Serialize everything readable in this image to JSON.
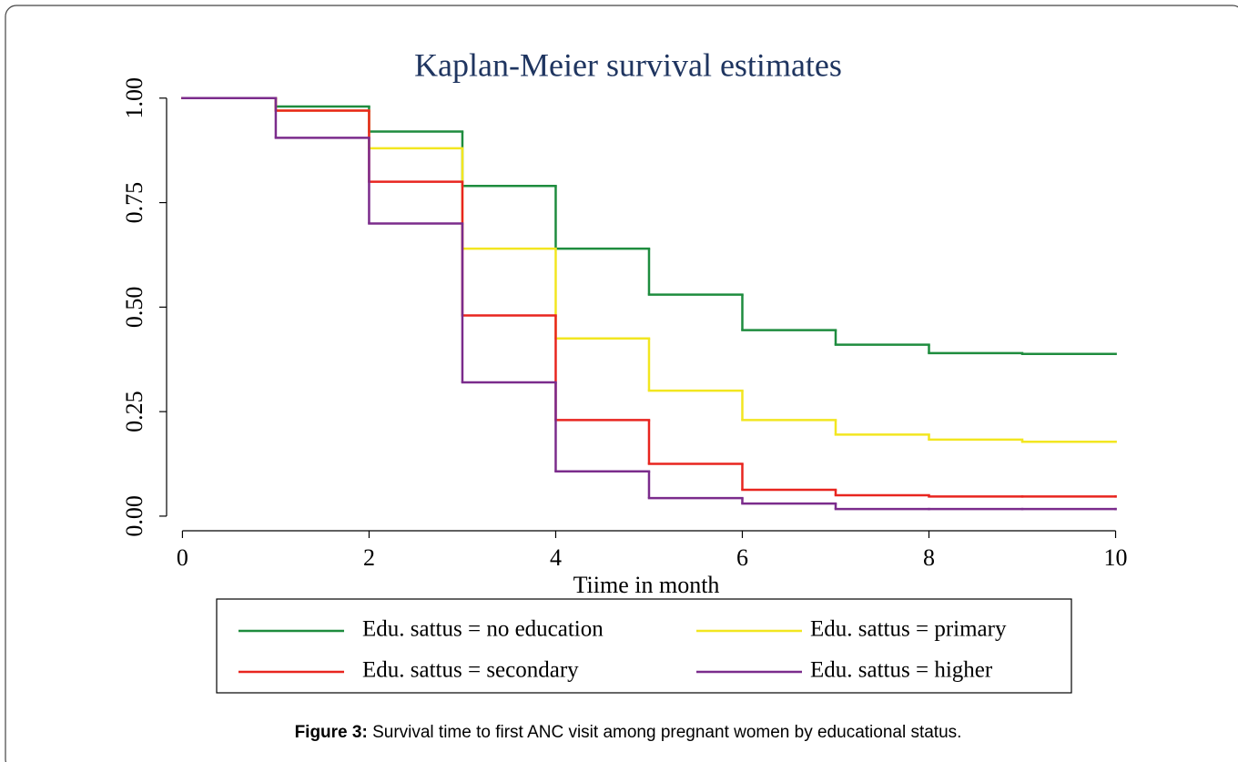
{
  "chart_data": {
    "type": "step",
    "title": "Kaplan-Meier survival estimates",
    "x_label": "Tiime in month",
    "x": [
      0,
      1,
      2,
      3,
      4,
      5,
      6,
      7,
      8,
      9,
      10
    ],
    "series": [
      {
        "name": "Edu. sattus = no education",
        "color": "#1e8c3e",
        "values": [
          1.0,
          0.98,
          0.92,
          0.79,
          0.64,
          0.53,
          0.445,
          0.41,
          0.39,
          0.388,
          0.388
        ]
      },
      {
        "name": "Edu. sattus = primary",
        "color": "#f2e620",
        "values": [
          1.0,
          0.97,
          0.88,
          0.64,
          0.425,
          0.3,
          0.23,
          0.195,
          0.183,
          0.178,
          0.178
        ]
      },
      {
        "name": "Edu. sattus = secondary",
        "color": "#e8251f",
        "values": [
          1.0,
          0.97,
          0.8,
          0.48,
          0.23,
          0.125,
          0.063,
          0.05,
          0.047,
          0.047,
          0.047
        ]
      },
      {
        "name": "Edu. sattus = higher",
        "color": "#7b2c8c",
        "values": [
          1.0,
          0.905,
          0.7,
          0.32,
          0.107,
          0.043,
          0.03,
          0.017,
          0.017,
          0.017,
          0.017
        ]
      }
    ],
    "xlim": [
      -0.17,
      10.19
    ],
    "xticks": [
      0,
      2,
      4,
      6,
      8,
      10
    ],
    "ylim": [
      -0.035,
      1.03
    ],
    "yticks": [
      {
        "value": 0,
        "label": "0.00"
      },
      {
        "value": 0.25,
        "label": "0.25"
      },
      {
        "value": 0.5,
        "label": "0.50"
      },
      {
        "value": 0.75,
        "label": "0.75"
      },
      {
        "value": 1,
        "label": "1.00"
      }
    ],
    "grid": false,
    "legend_position": "bottom"
  },
  "caption": {
    "label": "Figure 3:",
    "text": "Survival time to first ANC visit among pregnant women by educational status."
  }
}
